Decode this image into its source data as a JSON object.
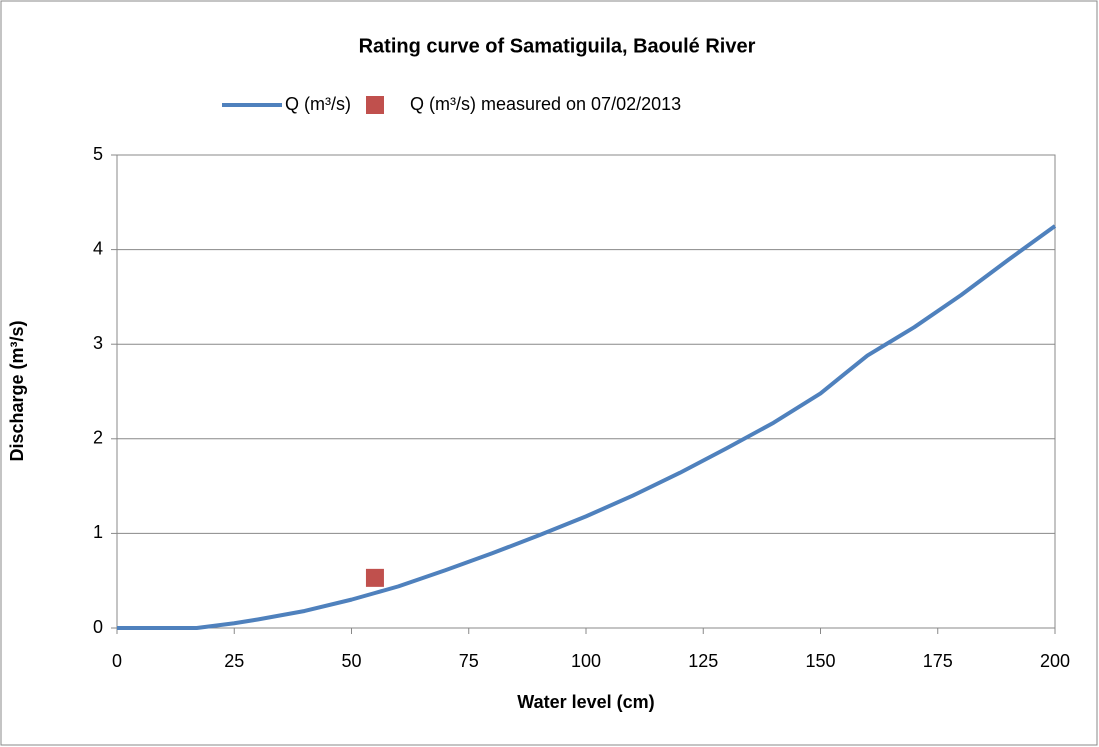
{
  "chart_data": {
    "type": "line",
    "title": "Rating curve of Samatiguila, Baoulé River",
    "xlabel": "Water level (cm)",
    "ylabel": "Discharge (m³/s)",
    "series": [
      {
        "name": "Q (m³/s)",
        "type": "line",
        "color": "#4f81bd",
        "x": [
          0,
          5,
          10,
          17,
          25,
          30,
          40,
          50,
          55,
          60,
          70,
          80,
          90,
          100,
          110,
          120,
          130,
          140,
          150,
          155,
          160,
          170,
          180,
          190,
          200
        ],
        "values": [
          0,
          0,
          0,
          0,
          0.05,
          0.09,
          0.18,
          0.3,
          0.37,
          0.44,
          0.61,
          0.79,
          0.98,
          1.18,
          1.4,
          1.64,
          1.9,
          2.17,
          2.48,
          2.68,
          2.88,
          3.18,
          3.52,
          3.89,
          4.25
        ]
      },
      {
        "name": "Q (m³/s) measured on 07/02/2013",
        "type": "scatter",
        "color": "#c0504d",
        "x": [
          55
        ],
        "values": [
          0.53
        ]
      }
    ],
    "xlim": [
      0,
      200
    ],
    "xticks": [
      0,
      25,
      50,
      75,
      100,
      125,
      150,
      175,
      200
    ],
    "ylim": [
      0,
      5
    ],
    "yticks": [
      0,
      1,
      2,
      3,
      4,
      5
    ],
    "grid": true,
    "legend": "top"
  }
}
